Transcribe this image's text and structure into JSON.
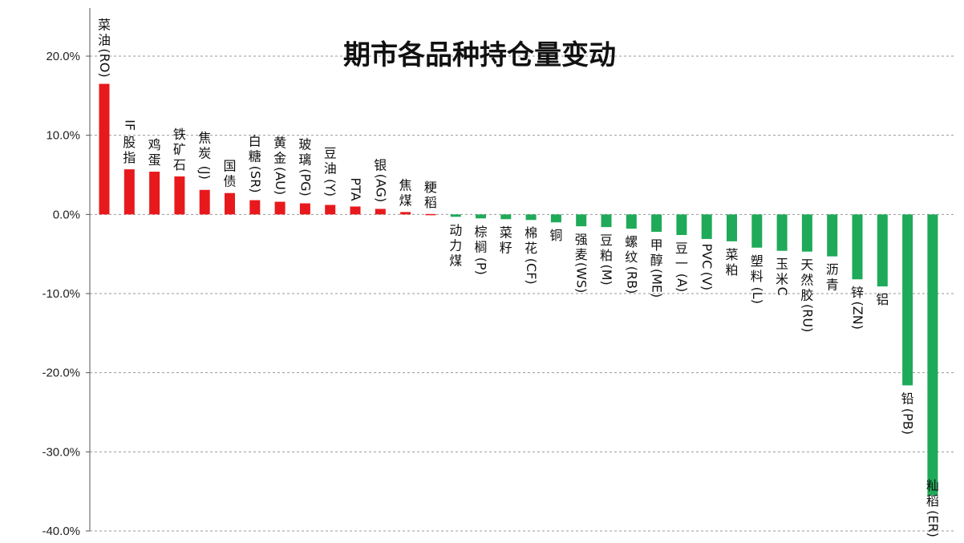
{
  "chart_data": {
    "type": "bar",
    "title": "期市各品种持仓量变动",
    "xlabel": "",
    "ylabel": "",
    "ylim": [
      -40,
      20
    ],
    "yticks": [
      "20.0%",
      "10.0%",
      "0.0%",
      "-10.0%",
      "-20.0%",
      "-30.0%",
      "-40.0%"
    ],
    "ytick_values": [
      20,
      10,
      0,
      -10,
      -20,
      -30,
      -40
    ],
    "grid": true,
    "legend": "none",
    "colors": {
      "positive": "#e8191c",
      "negative": "#1faa59",
      "grid": "#999999"
    },
    "categories": [
      "菜油(RO)",
      "IF股指",
      "鸡蛋",
      "铁矿石",
      "焦炭(J)",
      "国债",
      "白糖(SR)",
      "黄金(AU)",
      "玻璃（PG)",
      "豆油(Y)",
      "PTA",
      "银(AG)",
      "焦煤",
      "粳稻",
      "动力煤",
      "棕榈(P)",
      "菜籽",
      "棉花(CF)",
      "铜",
      "强麦（WS)",
      "豆粕(M)",
      "螺纹（RB)",
      "甲醇(ME)",
      "豆一(A)",
      "PVC(V)",
      "菜粕",
      "塑料(L)",
      "玉米C",
      "天然胶(RU)",
      "沥青",
      "锌(ZN)",
      "铝",
      "铅(PB)",
      "籼稻(ER)"
    ],
    "values": [
      16.5,
      5.7,
      5.4,
      4.8,
      3.1,
      2.7,
      1.8,
      1.6,
      1.4,
      1.2,
      1.0,
      0.7,
      0.3,
      0.05,
      -0.3,
      -0.5,
      -0.6,
      -0.7,
      -1.0,
      -1.5,
      -1.6,
      -1.8,
      -2.2,
      -2.6,
      -3.1,
      -3.4,
      -4.2,
      -4.6,
      -4.7,
      -5.3,
      -8.2,
      -9.1,
      -21.6,
      -35.5
    ]
  }
}
